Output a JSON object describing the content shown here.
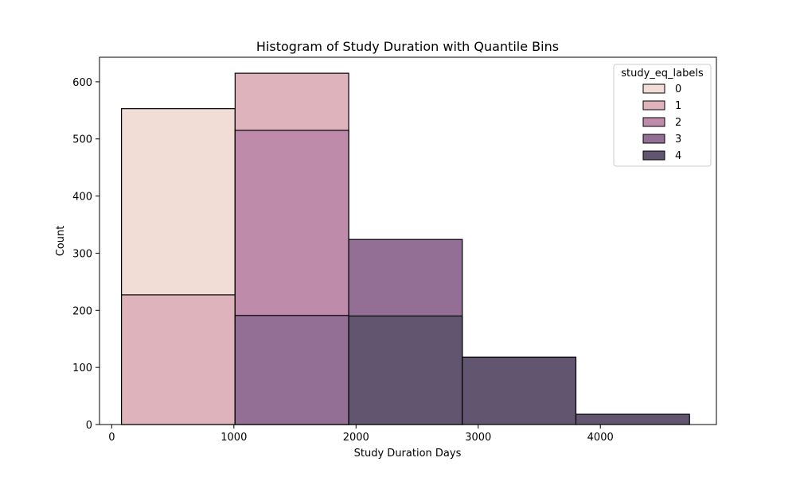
{
  "chart_data": {
    "type": "bar",
    "title": "Histogram of Study Duration with Quantile Bins",
    "xlabel": "Study Duration Days",
    "ylabel": "Count",
    "xlim": [
      -100,
      4950
    ],
    "ylim": [
      0,
      643
    ],
    "x_ticks": [
      0,
      1000,
      2000,
      3000,
      4000
    ],
    "y_ticks": [
      0,
      100,
      200,
      300,
      400,
      500,
      600
    ],
    "grid": false,
    "legend": {
      "title": "study_eq_labels",
      "placement": "top-right"
    },
    "bin_edges": [
      80,
      1010,
      1940,
      2870,
      3800,
      4730
    ],
    "series": [
      {
        "name": "0",
        "color": "#f1dcd6",
        "values": [
          553,
          0,
          0,
          0,
          0
        ]
      },
      {
        "name": "1",
        "color": "#dfb3bc",
        "values": [
          227,
          615,
          0,
          0,
          0
        ]
      },
      {
        "name": "2",
        "color": "#bf8bab",
        "values": [
          0,
          515,
          0,
          0,
          0
        ]
      },
      {
        "name": "3",
        "color": "#936f95",
        "values": [
          0,
          191,
          324,
          0,
          0
        ]
      },
      {
        "name": "4",
        "color": "#62556f",
        "values": [
          0,
          0,
          190,
          118,
          18
        ]
      }
    ]
  }
}
